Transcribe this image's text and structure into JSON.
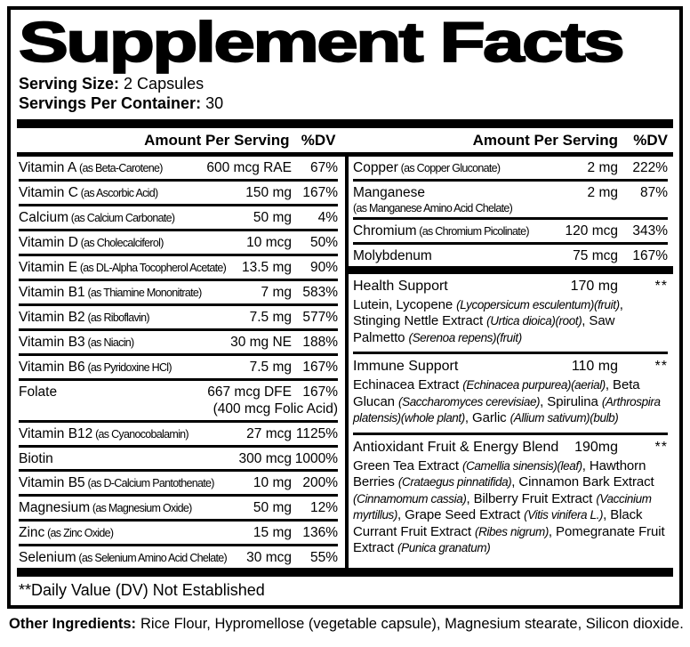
{
  "colors": {
    "ink": "#000000",
    "paper": "#ffffff"
  },
  "title": "Supplement Facts",
  "serving": {
    "size_label": "Serving Size:",
    "size_value": "2 Capsules",
    "per_container_label": "Servings Per Container:",
    "per_container_value": "30"
  },
  "column_headers": {
    "amount": "Amount Per Serving",
    "dv": "%DV"
  },
  "left_rows": [
    {
      "name": "Vitamin A",
      "form": "(as Beta-Carotene)",
      "amount": "600 mcg RAE",
      "dv": "67%"
    },
    {
      "name": "Vitamin C",
      "form": "(as Ascorbic Acid)",
      "amount": "150 mg",
      "dv": "167%"
    },
    {
      "name": "Calcium",
      "form": "(as Calcium Carbonate)",
      "amount": "50 mg",
      "dv": "4%"
    },
    {
      "name": "Vitamin D",
      "form": "(as Cholecalciferol)",
      "amount": "10 mcg",
      "dv": "50%"
    },
    {
      "name": "Vitamin E",
      "form": "(as DL-Alpha Tocopherol Acetate)",
      "amount": "13.5 mg",
      "dv": "90%"
    },
    {
      "name": "Vitamin B1",
      "form": "(as Thiamine Mononitrate)",
      "amount": "7 mg",
      "dv": "583%"
    },
    {
      "name": "Vitamin B2",
      "form": "(as Riboflavin)",
      "amount": "7.5 mg",
      "dv": "577%"
    },
    {
      "name": "Vitamin B3",
      "form": "(as Niacin)",
      "amount": "30 mg NE",
      "dv": "188%"
    },
    {
      "name": "Vitamin B6",
      "form": "(as Pyridoxine HCl)",
      "amount": "7.5 mg",
      "dv": "167%"
    },
    {
      "name": "Folate",
      "form": "",
      "amount": "667 mcg DFE",
      "amount2": "(400 mcg Folic Acid)",
      "dv": "167%"
    },
    {
      "name": "Vitamin B12",
      "form": "(as Cyanocobalamin)",
      "amount": "27 mcg",
      "dv": "1125%"
    },
    {
      "name": "Biotin",
      "form": "",
      "amount": "300 mcg",
      "dv": "1000%"
    },
    {
      "name": "Vitamin B5",
      "form": "(as D-Calcium Pantothenate)",
      "amount": "10 mg",
      "dv": "200%"
    },
    {
      "name": "Magnesium",
      "form": "(as Magnesium Oxide)",
      "amount": "50 mg",
      "dv": "12%"
    },
    {
      "name": "Zinc",
      "form": "(as Zinc Oxide)",
      "amount": "15 mg",
      "dv": "136%"
    },
    {
      "name": "Selenium",
      "form": "(as Selenium Amino Acid Chelate)",
      "amount": "30 mcg",
      "dv": "55%"
    }
  ],
  "right_rows": [
    {
      "name": "Copper",
      "form": "(as Copper Gluconate)",
      "amount": "2 mg",
      "dv": "222%"
    },
    {
      "name": "Manganese",
      "form": "",
      "form_below": "(as Manganese Amino Acid Chelate)",
      "amount": "2 mg",
      "dv": "87%"
    },
    {
      "name": "Chromium",
      "form": "(as Chromium Picolinate)",
      "amount": "120 mcg",
      "dv": "343%"
    },
    {
      "name": "Molybdenum",
      "form": "",
      "amount": "75 mcg",
      "dv": "167%"
    }
  ],
  "blends": [
    {
      "name": "Health Support",
      "amount": "170 mg",
      "dv": "**",
      "ingredients": [
        {
          "t": "Lutein, Lycopene "
        },
        {
          "t": "(Lycopersicum esculentum)(fruit)",
          "i": true
        },
        {
          "t": ", Stinging Nettle Extract "
        },
        {
          "t": "(Urtica dioica)(root)",
          "i": true
        },
        {
          "t": ", Saw Palmetto "
        },
        {
          "t": "(Serenoa repens)(fruit)",
          "i": true
        }
      ]
    },
    {
      "name": "Immune Support",
      "amount": "110 mg",
      "dv": "**",
      "ingredients": [
        {
          "t": "Echinacea Extract "
        },
        {
          "t": "(Echinacea purpurea)(aerial)",
          "i": true
        },
        {
          "t": ", Beta Glucan "
        },
        {
          "t": "(Saccharomyces cerevisiae)",
          "i": true
        },
        {
          "t": ", Spirulina "
        },
        {
          "t": "(Arthrospira platensis)(whole plant)",
          "i": true
        },
        {
          "t": ", Garlic "
        },
        {
          "t": "(Allium sativum)(bulb)",
          "i": true
        }
      ]
    },
    {
      "name": "Antioxidant Fruit & Energy Blend",
      "amount": "190mg",
      "dv": "**",
      "ingredients": [
        {
          "t": "Green Tea Extract "
        },
        {
          "t": "(Camellia sinensis)(leaf)",
          "i": true
        },
        {
          "t": ", Hawthorn Berries "
        },
        {
          "t": "(Crataegus pinnatifida)",
          "i": true
        },
        {
          "t": ", Cinnamon Bark Extract "
        },
        {
          "t": "(Cinnamomum cassia)",
          "i": true
        },
        {
          "t": ", Bilberry Fruit Extract "
        },
        {
          "t": "(Vaccinium myrtillus)",
          "i": true
        },
        {
          "t": ", Grape Seed Extract "
        },
        {
          "t": "(Vitis vinifera L.)",
          "i": true
        },
        {
          "t": ", Black Currant Fruit Extract "
        },
        {
          "t": "(Ribes nigrum)",
          "i": true
        },
        {
          "t": ", Pomegranate Fruit Extract "
        },
        {
          "t": "(Punica granatum)",
          "i": true
        }
      ]
    }
  ],
  "footnote": "**Daily Value (DV) Not Established",
  "other_ingredients": {
    "label": "Other Ingredients:",
    "value": "Rice Flour, Hypromellose (vegetable capsule), Magnesium stearate, Silicon dioxide."
  }
}
